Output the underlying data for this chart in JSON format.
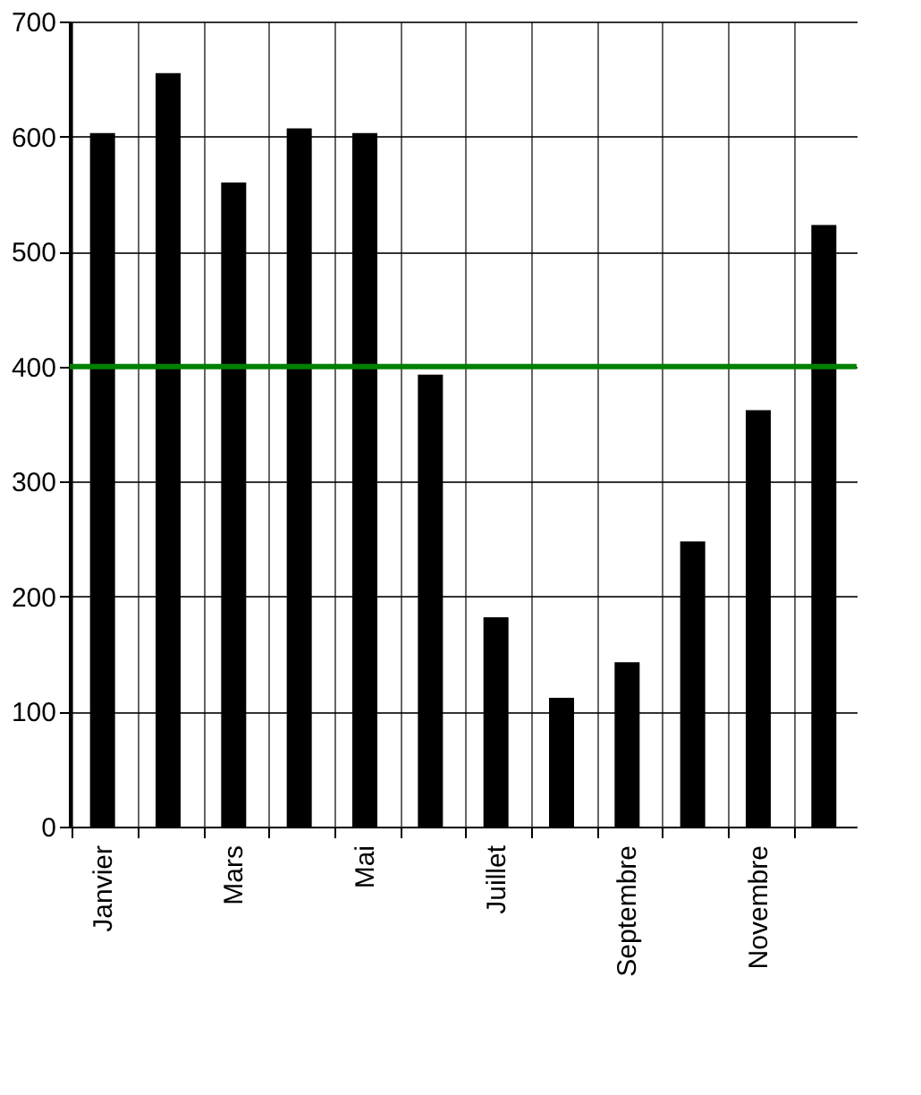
{
  "chart_data": {
    "type": "bar",
    "categories": [
      "Janvier",
      null,
      "Mars",
      null,
      "Mai",
      null,
      "Juillet",
      null,
      "Septembre",
      null,
      "Novembre",
      null
    ],
    "values": [
      603,
      655,
      560,
      607,
      603,
      393,
      182,
      112,
      143,
      248,
      362,
      523
    ],
    "color": "#000000",
    "ylim": [
      0,
      700
    ],
    "yticks": [
      0,
      100,
      200,
      300,
      400,
      500,
      600,
      700
    ],
    "grid": true,
    "ref_lines": [
      {
        "axis": "y",
        "value": 400,
        "color": "#008000"
      }
    ]
  }
}
